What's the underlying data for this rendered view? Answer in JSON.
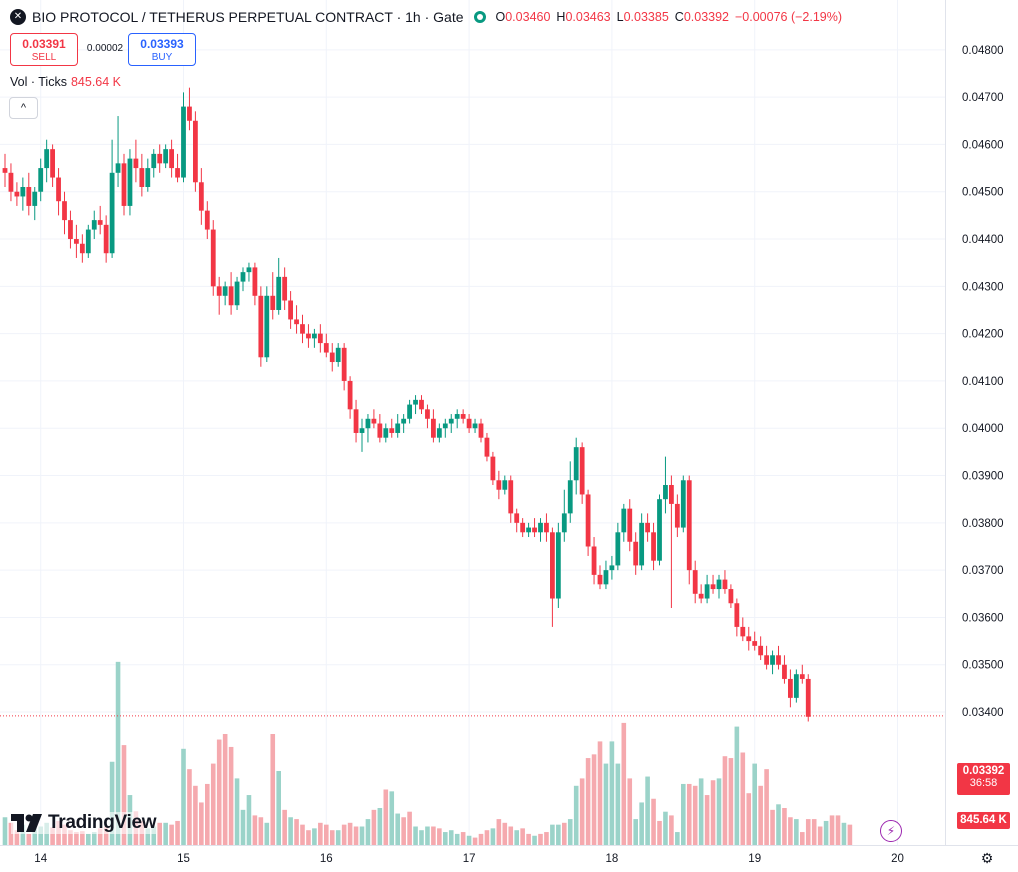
{
  "header": {
    "logo_glyph": "✕",
    "title": "BIO PROTOCOL / TETHERUS PERPETUAL CONTRACT · 1h · Gate",
    "ohlc": {
      "o_label": "O",
      "o": "0.03460",
      "h_label": "H",
      "h": "0.03463",
      "l_label": "L",
      "l": "0.03385",
      "c_label": "C",
      "c": "0.03392",
      "change": "−0.00076 (−2.19%)"
    }
  },
  "trade": {
    "sell_price": "0.03391",
    "sell_label": "SELL",
    "spread": "0.00002",
    "buy_price": "0.03393",
    "buy_label": "BUY"
  },
  "volume_legend": {
    "label": "Vol · Ticks",
    "value": "845.64 K"
  },
  "collapse_glyph": "^",
  "watermark": "TradingView",
  "badges": {
    "price": "0.03392",
    "countdown": "36:58",
    "volume": "845.64 K"
  },
  "colors": {
    "up": "#089981",
    "down": "#f23645",
    "vol_up": "#9bd3c9",
    "vol_down": "#f5a9ae",
    "grid": "#f0f3fa"
  },
  "chart_data": {
    "type": "candlestick",
    "interval": "1h",
    "y_axis": {
      "min": 0.0325,
      "max": 0.04825,
      "ticks": [
        "0.04800",
        "0.04700",
        "0.04600",
        "0.04500",
        "0.04400",
        "0.04300",
        "0.04200",
        "0.04100",
        "0.04000",
        "0.03900",
        "0.03800",
        "0.03700",
        "0.03600",
        "0.03500",
        "0.03400"
      ]
    },
    "x_axis": {
      "labels": [
        {
          "label": "14",
          "index": 6
        },
        {
          "label": "15",
          "index": 30
        },
        {
          "label": "16",
          "index": 54
        },
        {
          "label": "17",
          "index": 78
        },
        {
          "label": "18",
          "index": 102
        },
        {
          "label": "19",
          "index": 126
        },
        {
          "label": "20",
          "index": 150
        }
      ],
      "count": 148
    },
    "last_price": 0.03392,
    "candles": [
      [
        0.0455,
        0.0458,
        0.0451,
        0.0454
      ],
      [
        0.0454,
        0.0456,
        0.0448,
        0.045
      ],
      [
        0.045,
        0.0452,
        0.0447,
        0.0449
      ],
      [
        0.0449,
        0.0453,
        0.0446,
        0.0451
      ],
      [
        0.0451,
        0.0454,
        0.0445,
        0.0447
      ],
      [
        0.0447,
        0.0451,
        0.0444,
        0.045
      ],
      [
        0.045,
        0.0457,
        0.0448,
        0.0455
      ],
      [
        0.0455,
        0.0461,
        0.0452,
        0.0459
      ],
      [
        0.0459,
        0.046,
        0.0451,
        0.0453
      ],
      [
        0.0453,
        0.0455,
        0.0445,
        0.0448
      ],
      [
        0.0448,
        0.045,
        0.0441,
        0.0444
      ],
      [
        0.0444,
        0.0446,
        0.0438,
        0.044
      ],
      [
        0.044,
        0.0443,
        0.0436,
        0.0439
      ],
      [
        0.0439,
        0.0441,
        0.0435,
        0.0437
      ],
      [
        0.0437,
        0.0443,
        0.0436,
        0.0442
      ],
      [
        0.0442,
        0.0446,
        0.044,
        0.0444
      ],
      [
        0.0444,
        0.0447,
        0.0441,
        0.0443
      ],
      [
        0.0443,
        0.0445,
        0.0435,
        0.0437
      ],
      [
        0.0437,
        0.0461,
        0.0436,
        0.0454
      ],
      [
        0.0454,
        0.0466,
        0.0451,
        0.0456
      ],
      [
        0.0456,
        0.0458,
        0.0445,
        0.0447
      ],
      [
        0.0447,
        0.0459,
        0.0445,
        0.0457
      ],
      [
        0.0457,
        0.0461,
        0.0452,
        0.0455
      ],
      [
        0.0455,
        0.0458,
        0.0449,
        0.0451
      ],
      [
        0.0451,
        0.0457,
        0.045,
        0.0455
      ],
      [
        0.0455,
        0.0459,
        0.0453,
        0.0458
      ],
      [
        0.0458,
        0.046,
        0.0454,
        0.0456
      ],
      [
        0.0456,
        0.046,
        0.0455,
        0.0459
      ],
      [
        0.0459,
        0.0461,
        0.0453,
        0.0455
      ],
      [
        0.0455,
        0.0458,
        0.0452,
        0.0453
      ],
      [
        0.0453,
        0.0471,
        0.0452,
        0.0468
      ],
      [
        0.0468,
        0.0472,
        0.0463,
        0.0465
      ],
      [
        0.0465,
        0.0467,
        0.045,
        0.0452
      ],
      [
        0.0452,
        0.0455,
        0.0443,
        0.0446
      ],
      [
        0.0446,
        0.0448,
        0.044,
        0.0442
      ],
      [
        0.0442,
        0.0444,
        0.0428,
        0.043
      ],
      [
        0.043,
        0.0432,
        0.0424,
        0.0428
      ],
      [
        0.0428,
        0.0431,
        0.0426,
        0.043
      ],
      [
        0.043,
        0.0433,
        0.0424,
        0.0426
      ],
      [
        0.0426,
        0.0432,
        0.0425,
        0.0431
      ],
      [
        0.0431,
        0.0434,
        0.0429,
        0.0433
      ],
      [
        0.0433,
        0.0435,
        0.0431,
        0.0434
      ],
      [
        0.0434,
        0.0435,
        0.0426,
        0.0428
      ],
      [
        0.0428,
        0.043,
        0.0413,
        0.0415
      ],
      [
        0.0415,
        0.043,
        0.0414,
        0.0428
      ],
      [
        0.0428,
        0.0433,
        0.0423,
        0.0425
      ],
      [
        0.0425,
        0.0436,
        0.0424,
        0.0432
      ],
      [
        0.0432,
        0.0434,
        0.0425,
        0.0427
      ],
      [
        0.0427,
        0.0429,
        0.0421,
        0.0423
      ],
      [
        0.0423,
        0.0426,
        0.042,
        0.0422
      ],
      [
        0.0422,
        0.0424,
        0.0418,
        0.042
      ],
      [
        0.042,
        0.0422,
        0.0417,
        0.0419
      ],
      [
        0.0419,
        0.0421,
        0.0417,
        0.042
      ],
      [
        0.042,
        0.0422,
        0.0416,
        0.0418
      ],
      [
        0.0418,
        0.042,
        0.0415,
        0.0416
      ],
      [
        0.0416,
        0.0418,
        0.0412,
        0.0414
      ],
      [
        0.0414,
        0.0418,
        0.0413,
        0.0417
      ],
      [
        0.0417,
        0.0418,
        0.0408,
        0.041
      ],
      [
        0.041,
        0.0411,
        0.0402,
        0.0404
      ],
      [
        0.0404,
        0.0406,
        0.0397,
        0.0399
      ],
      [
        0.0399,
        0.0402,
        0.0395,
        0.04
      ],
      [
        0.04,
        0.0403,
        0.0397,
        0.0402
      ],
      [
        0.0402,
        0.0404,
        0.04,
        0.0401
      ],
      [
        0.0401,
        0.0403,
        0.0397,
        0.0398
      ],
      [
        0.0398,
        0.0401,
        0.0397,
        0.04
      ],
      [
        0.04,
        0.0402,
        0.0398,
        0.0399
      ],
      [
        0.0399,
        0.0403,
        0.0398,
        0.0401
      ],
      [
        0.0401,
        0.0403,
        0.0399,
        0.0402
      ],
      [
        0.0402,
        0.0406,
        0.0401,
        0.0405
      ],
      [
        0.0405,
        0.0407,
        0.0403,
        0.0406
      ],
      [
        0.0406,
        0.0407,
        0.0403,
        0.0404
      ],
      [
        0.0404,
        0.0405,
        0.04,
        0.0402
      ],
      [
        0.0402,
        0.0404,
        0.0397,
        0.0398
      ],
      [
        0.0398,
        0.0401,
        0.0397,
        0.04
      ],
      [
        0.04,
        0.0402,
        0.0398,
        0.0401
      ],
      [
        0.0401,
        0.0403,
        0.0399,
        0.0402
      ],
      [
        0.0402,
        0.0404,
        0.04,
        0.0403
      ],
      [
        0.0403,
        0.0404,
        0.0401,
        0.0402
      ],
      [
        0.0402,
        0.0403,
        0.0399,
        0.04
      ],
      [
        0.04,
        0.0402,
        0.0399,
        0.0401
      ],
      [
        0.0401,
        0.0402,
        0.0397,
        0.0398
      ],
      [
        0.0398,
        0.0399,
        0.0393,
        0.0394
      ],
      [
        0.0394,
        0.0395,
        0.0388,
        0.0389
      ],
      [
        0.0389,
        0.0391,
        0.0385,
        0.0387
      ],
      [
        0.0387,
        0.039,
        0.0386,
        0.0389
      ],
      [
        0.0389,
        0.039,
        0.038,
        0.0382
      ],
      [
        0.0382,
        0.0383,
        0.0378,
        0.038
      ],
      [
        0.038,
        0.0381,
        0.0377,
        0.0378
      ],
      [
        0.0378,
        0.038,
        0.0377,
        0.0379
      ],
      [
        0.0379,
        0.0381,
        0.0377,
        0.0378
      ],
      [
        0.0378,
        0.0381,
        0.0376,
        0.038
      ],
      [
        0.038,
        0.0382,
        0.0376,
        0.0378
      ],
      [
        0.0378,
        0.0379,
        0.0358,
        0.0364
      ],
      [
        0.0364,
        0.038,
        0.0362,
        0.0378
      ],
      [
        0.0378,
        0.0387,
        0.0376,
        0.0382
      ],
      [
        0.0382,
        0.0393,
        0.038,
        0.0389
      ],
      [
        0.0389,
        0.0398,
        0.0386,
        0.0396
      ],
      [
        0.0396,
        0.0397,
        0.0384,
        0.0386
      ],
      [
        0.0386,
        0.0387,
        0.0373,
        0.0375
      ],
      [
        0.0375,
        0.0377,
        0.0367,
        0.0369
      ],
      [
        0.0369,
        0.0371,
        0.0366,
        0.0367
      ],
      [
        0.0367,
        0.0372,
        0.0366,
        0.037
      ],
      [
        0.037,
        0.0373,
        0.0368,
        0.0371
      ],
      [
        0.0371,
        0.038,
        0.037,
        0.0378
      ],
      [
        0.0378,
        0.0384,
        0.0376,
        0.0383
      ],
      [
        0.0383,
        0.0385,
        0.0374,
        0.0376
      ],
      [
        0.0376,
        0.0378,
        0.0369,
        0.0371
      ],
      [
        0.0371,
        0.0382,
        0.037,
        0.038
      ],
      [
        0.038,
        0.0382,
        0.0376,
        0.0378
      ],
      [
        0.0378,
        0.038,
        0.037,
        0.0372
      ],
      [
        0.0372,
        0.0386,
        0.0371,
        0.0385
      ],
      [
        0.0385,
        0.0394,
        0.0382,
        0.0388
      ],
      [
        0.0388,
        0.039,
        0.0362,
        0.0384
      ],
      [
        0.0384,
        0.0386,
        0.0377,
        0.0379
      ],
      [
        0.0379,
        0.039,
        0.0378,
        0.0389
      ],
      [
        0.0389,
        0.039,
        0.0367,
        0.037
      ],
      [
        0.037,
        0.0372,
        0.0363,
        0.0365
      ],
      [
        0.0365,
        0.0367,
        0.0363,
        0.0364
      ],
      [
        0.0364,
        0.0369,
        0.0363,
        0.0367
      ],
      [
        0.0367,
        0.0369,
        0.0365,
        0.0366
      ],
      [
        0.0366,
        0.0369,
        0.0364,
        0.0368
      ],
      [
        0.0368,
        0.037,
        0.0365,
        0.0366
      ],
      [
        0.0366,
        0.0367,
        0.0362,
        0.0363
      ],
      [
        0.0363,
        0.0364,
        0.0356,
        0.0358
      ],
      [
        0.0358,
        0.036,
        0.0355,
        0.0356
      ],
      [
        0.0356,
        0.0358,
        0.0353,
        0.0355
      ],
      [
        0.0355,
        0.0357,
        0.0353,
        0.0354
      ],
      [
        0.0354,
        0.0356,
        0.0351,
        0.0352
      ],
      [
        0.0352,
        0.0354,
        0.0349,
        0.035
      ],
      [
        0.035,
        0.0353,
        0.0348,
        0.0352
      ],
      [
        0.0352,
        0.0354,
        0.0349,
        0.035
      ],
      [
        0.035,
        0.0352,
        0.0346,
        0.0347
      ],
      [
        0.0347,
        0.0349,
        0.0341,
        0.0343
      ],
      [
        0.0343,
        0.0349,
        0.0342,
        0.0348
      ],
      [
        0.0348,
        0.035,
        0.0346,
        0.0347
      ],
      [
        0.0347,
        0.0348,
        0.0338,
        0.0339
      ]
    ],
    "volume_max": 1000,
    "volume": [
      150,
      120,
      80,
      110,
      60,
      90,
      100,
      120,
      95,
      130,
      110,
      80,
      70,
      75,
      60,
      70,
      90,
      100,
      450,
      990,
      540,
      270,
      180,
      130,
      90,
      100,
      120,
      120,
      110,
      130,
      520,
      410,
      320,
      230,
      330,
      440,
      570,
      600,
      530,
      360,
      190,
      270,
      160,
      150,
      120,
      600,
      400,
      190,
      150,
      140,
      110,
      80,
      90,
      120,
      110,
      80,
      80,
      110,
      120,
      100,
      100,
      140,
      190,
      200,
      300,
      290,
      170,
      150,
      180,
      100,
      80,
      100,
      100,
      90,
      70,
      80,
      60,
      70,
      50,
      40,
      60,
      80,
      90,
      140,
      120,
      100,
      80,
      90,
      60,
      50,
      60,
      70,
      110,
      110,
      120,
      140,
      320,
      360,
      470,
      490,
      560,
      440,
      560,
      440,
      660,
      360,
      140,
      230,
      370,
      250,
      130,
      180,
      160,
      70,
      330,
      330,
      320,
      360,
      270,
      350,
      360,
      480,
      470,
      640,
      500,
      280,
      440,
      320,
      410,
      190,
      220,
      200,
      150,
      140,
      70,
      140,
      140,
      100,
      130,
      160,
      160,
      120,
      110
    ],
    "volume_dir": [
      1,
      -1,
      -1,
      1,
      -1,
      1,
      1,
      1,
      -1,
      -1,
      -1,
      -1,
      -1,
      -1,
      1,
      1,
      -1,
      -1,
      1,
      1,
      -1,
      1,
      -1,
      -1,
      1,
      1,
      -1,
      1,
      -1,
      -1,
      1,
      -1,
      -1,
      -1,
      -1,
      -1,
      -1,
      -1,
      -1,
      1,
      1,
      1,
      -1,
      -1,
      1,
      -1,
      1,
      -1,
      1,
      -1,
      -1,
      -1,
      1,
      -1,
      -1,
      -1,
      1,
      -1,
      -1,
      -1,
      1,
      1,
      -1,
      1,
      -1,
      1,
      1,
      -1,
      -1,
      1,
      1,
      1,
      -1,
      -1,
      1,
      1,
      1,
      -1,
      1,
      -1,
      -1,
      -1,
      1,
      -1,
      -1,
      -1,
      1,
      -1,
      -1,
      1,
      -1,
      -1,
      1,
      1,
      -1,
      1,
      1,
      -1,
      -1,
      -1,
      -1,
      1,
      1,
      1,
      -1,
      -1,
      1,
      1,
      1,
      -1,
      -1,
      1,
      -1,
      1,
      1,
      -1,
      -1,
      1,
      -1,
      -1,
      1,
      -1,
      -1,
      1,
      -1,
      -1,
      1,
      -1,
      -1,
      -1,
      1,
      -1,
      -1,
      1,
      -1,
      -1,
      -1,
      -1,
      1,
      -1,
      -1,
      1,
      -1
    ]
  }
}
